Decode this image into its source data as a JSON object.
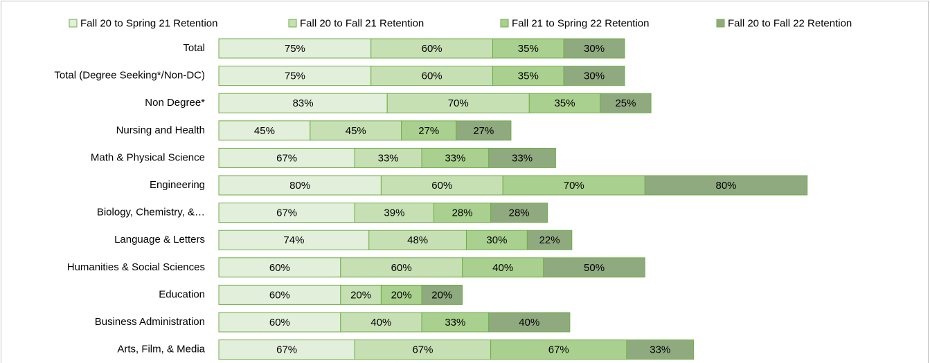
{
  "chart_data": {
    "type": "bar",
    "orientation": "horizontal",
    "stacked": true,
    "legend": "top",
    "categories": [
      "Total",
      "Total (Degree Seeking*/Non-DC)",
      "Non Degree*",
      "Nursing and Health",
      "Math & Physical Science",
      "Engineering",
      "Biology, Chemistry, &…",
      "Language & Letters",
      "Humanities & Social Sciences",
      "Education",
      "Business Administration",
      "Arts, Film, & Media"
    ],
    "series": [
      {
        "name": "Fall 20 to Spring 21 Retention",
        "color": "#e2efda",
        "values": [
          75,
          75,
          83,
          45,
          67,
          80,
          67,
          74,
          60,
          60,
          60,
          67
        ],
        "value_labels": [
          "75%",
          "75%",
          "83%",
          "45%",
          "67%",
          "80%",
          "67%",
          "74%",
          "60%",
          "60%",
          "60%",
          "67%"
        ]
      },
      {
        "name": "Fall 20 to Fall 21 Retention",
        "color": "#c6e0b4",
        "values": [
          60,
          60,
          70,
          45,
          33,
          60,
          39,
          48,
          60,
          20,
          40,
          67
        ],
        "value_labels": [
          "60%",
          "60%",
          "70%",
          "45%",
          "33%",
          "60%",
          "39%",
          "48%",
          "60%",
          "20%",
          "40%",
          "67%"
        ]
      },
      {
        "name": "Fall 21 to Spring 22 Retention",
        "color": "#a9d08e",
        "values": [
          35,
          35,
          35,
          27,
          33,
          70,
          28,
          30,
          40,
          20,
          33,
          67
        ],
        "value_labels": [
          "35%",
          "35%",
          "35%",
          "27%",
          "33%",
          "70%",
          "28%",
          "30%",
          "40%",
          "20%",
          "33%",
          "67%"
        ]
      },
      {
        "name": "Fall 20 to Fall 22 Retention",
        "color": "#8faa7f",
        "values": [
          30,
          30,
          25,
          27,
          33,
          80,
          28,
          22,
          50,
          20,
          40,
          33
        ],
        "value_labels": [
          "30%",
          "30%",
          "25%",
          "27%",
          "33%",
          "80%",
          "28%",
          "22%",
          "50%",
          "20%",
          "40%",
          "33%"
        ]
      }
    ]
  }
}
